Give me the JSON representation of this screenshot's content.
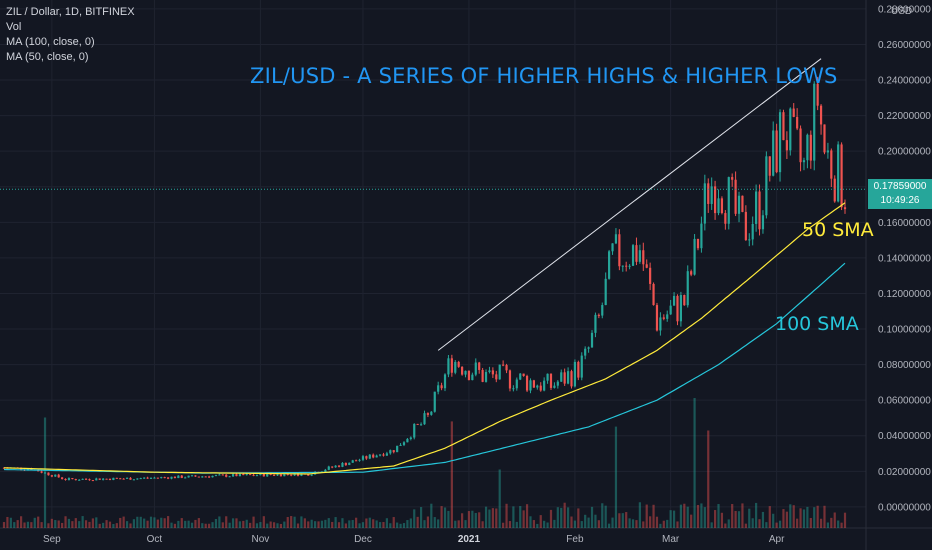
{
  "legend": {
    "symbol": "ZIL / Dollar, 1D, BITFINEX",
    "volume": "Vol",
    "ma100": "MA (100, close, 0)",
    "ma50": "MA (50, close, 0)"
  },
  "currency": "USD",
  "annotations": {
    "title": "ZIL/USD - A SERIES OF HIGHER HIGHS & HIGHER LOWS",
    "sma50": "50 SMA",
    "sma100": "100 SMA"
  },
  "price_tag": {
    "price": "0.17859000",
    "countdown": "10:49:26"
  },
  "colors": {
    "background": "#131722",
    "up": "#26a69a",
    "down": "#ef5350",
    "sma50": "#ffeb3b",
    "sma100": "#26c6da",
    "grid": "#1f2330",
    "axis_text": "#b2b5be"
  },
  "chart_data": {
    "type": "candlestick",
    "ylim": [
      -0.004,
      0.285
    ],
    "y_ticks": [
      "0.00000000",
      "0.02000000",
      "0.04000000",
      "0.06000000",
      "0.08000000",
      "0.10000000",
      "0.12000000",
      "0.14000000",
      "0.16000000",
      "0.18000000",
      "0.20000000",
      "0.22000000",
      "0.24000000",
      "0.26000000",
      "0.28000000"
    ],
    "x_ticks": [
      {
        "label": "Sep",
        "date": "2020-09-01"
      },
      {
        "label": "Oct",
        "date": "2020-10-01"
      },
      {
        "label": "Nov",
        "date": "2020-11-01"
      },
      {
        "label": "Dec",
        "date": "2020-12-01"
      },
      {
        "label": "2021",
        "date": "2021-01-01"
      },
      {
        "label": "Feb",
        "date": "2021-02-01"
      },
      {
        "label": "Mar",
        "date": "2021-03-01"
      },
      {
        "label": "Apr",
        "date": "2021-04-01"
      }
    ],
    "x_range": [
      "2020-08-18",
      "2021-04-21"
    ],
    "close_keyframes": [
      {
        "date": "2020-08-18",
        "close": 0.022
      },
      {
        "date": "2020-08-26",
        "close": 0.0215
      },
      {
        "date": "2020-09-05",
        "close": 0.0155
      },
      {
        "date": "2020-09-25",
        "close": 0.016
      },
      {
        "date": "2020-10-20",
        "close": 0.0175
      },
      {
        "date": "2020-11-15",
        "close": 0.0185
      },
      {
        "date": "2020-11-25",
        "close": 0.024
      },
      {
        "date": "2020-12-10",
        "close": 0.032
      },
      {
        "date": "2020-12-20",
        "close": 0.05
      },
      {
        "date": "2020-12-27",
        "close": 0.083
      },
      {
        "date": "2021-01-05",
        "close": 0.074
      },
      {
        "date": "2021-01-15",
        "close": 0.072
      },
      {
        "date": "2021-01-25",
        "close": 0.068
      },
      {
        "date": "2021-02-01",
        "close": 0.076
      },
      {
        "date": "2021-02-04",
        "close": 0.083
      },
      {
        "date": "2021-02-08",
        "close": 0.105
      },
      {
        "date": "2021-02-12",
        "close": 0.14
      },
      {
        "date": "2021-02-20",
        "close": 0.145
      },
      {
        "date": "2021-02-25",
        "close": 0.105
      },
      {
        "date": "2021-03-05",
        "close": 0.115
      },
      {
        "date": "2021-03-08",
        "close": 0.14
      },
      {
        "date": "2021-03-12",
        "close": 0.18
      },
      {
        "date": "2021-03-15",
        "close": 0.185
      },
      {
        "date": "2021-03-22",
        "close": 0.155
      },
      {
        "date": "2021-03-27",
        "close": 0.17
      },
      {
        "date": "2021-04-03",
        "close": 0.215
      },
      {
        "date": "2021-04-06",
        "close": 0.2
      },
      {
        "date": "2021-04-09",
        "close": 0.19
      },
      {
        "date": "2021-04-13",
        "close": 0.23
      },
      {
        "date": "2021-04-15",
        "close": 0.2
      },
      {
        "date": "2021-04-18",
        "close": 0.19
      },
      {
        "date": "2021-04-21",
        "close": 0.1786
      }
    ],
    "sma50_keyframes": [
      {
        "date": "2020-08-18",
        "value": 0.022
      },
      {
        "date": "2020-10-01",
        "value": 0.0195
      },
      {
        "date": "2020-11-15",
        "value": 0.0185
      },
      {
        "date": "2020-12-10",
        "value": 0.023
      },
      {
        "date": "2020-12-25",
        "value": 0.033
      },
      {
        "date": "2021-01-10",
        "value": 0.048
      },
      {
        "date": "2021-01-25",
        "value": 0.06
      },
      {
        "date": "2021-02-10",
        "value": 0.072
      },
      {
        "date": "2021-02-25",
        "value": 0.088
      },
      {
        "date": "2021-03-10",
        "value": 0.106
      },
      {
        "date": "2021-03-25",
        "value": 0.13
      },
      {
        "date": "2021-04-10",
        "value": 0.156
      },
      {
        "date": "2021-04-21",
        "value": 0.171
      }
    ],
    "sma100_keyframes": [
      {
        "date": "2020-08-18",
        "value": 0.021
      },
      {
        "date": "2020-10-15",
        "value": 0.019
      },
      {
        "date": "2020-12-01",
        "value": 0.0195
      },
      {
        "date": "2020-12-25",
        "value": 0.025
      },
      {
        "date": "2021-01-15",
        "value": 0.035
      },
      {
        "date": "2021-02-05",
        "value": 0.045
      },
      {
        "date": "2021-02-25",
        "value": 0.06
      },
      {
        "date": "2021-03-15",
        "value": 0.08
      },
      {
        "date": "2021-04-01",
        "value": 0.103
      },
      {
        "date": "2021-04-21",
        "value": 0.137
      }
    ],
    "trendline": [
      {
        "date": "2020-12-23",
        "value": 0.088
      },
      {
        "date": "2021-04-14",
        "value": 0.252
      }
    ],
    "current_price": 0.17859,
    "volume_spikes": [
      {
        "date": "2020-08-30",
        "height": 0.85
      },
      {
        "date": "2020-12-27",
        "height": 0.82
      },
      {
        "date": "2021-01-10",
        "height": 0.45
      },
      {
        "date": "2021-02-13",
        "height": 0.78
      },
      {
        "date": "2021-03-08",
        "height": 1.0
      },
      {
        "date": "2021-03-12",
        "height": 0.75
      }
    ]
  }
}
